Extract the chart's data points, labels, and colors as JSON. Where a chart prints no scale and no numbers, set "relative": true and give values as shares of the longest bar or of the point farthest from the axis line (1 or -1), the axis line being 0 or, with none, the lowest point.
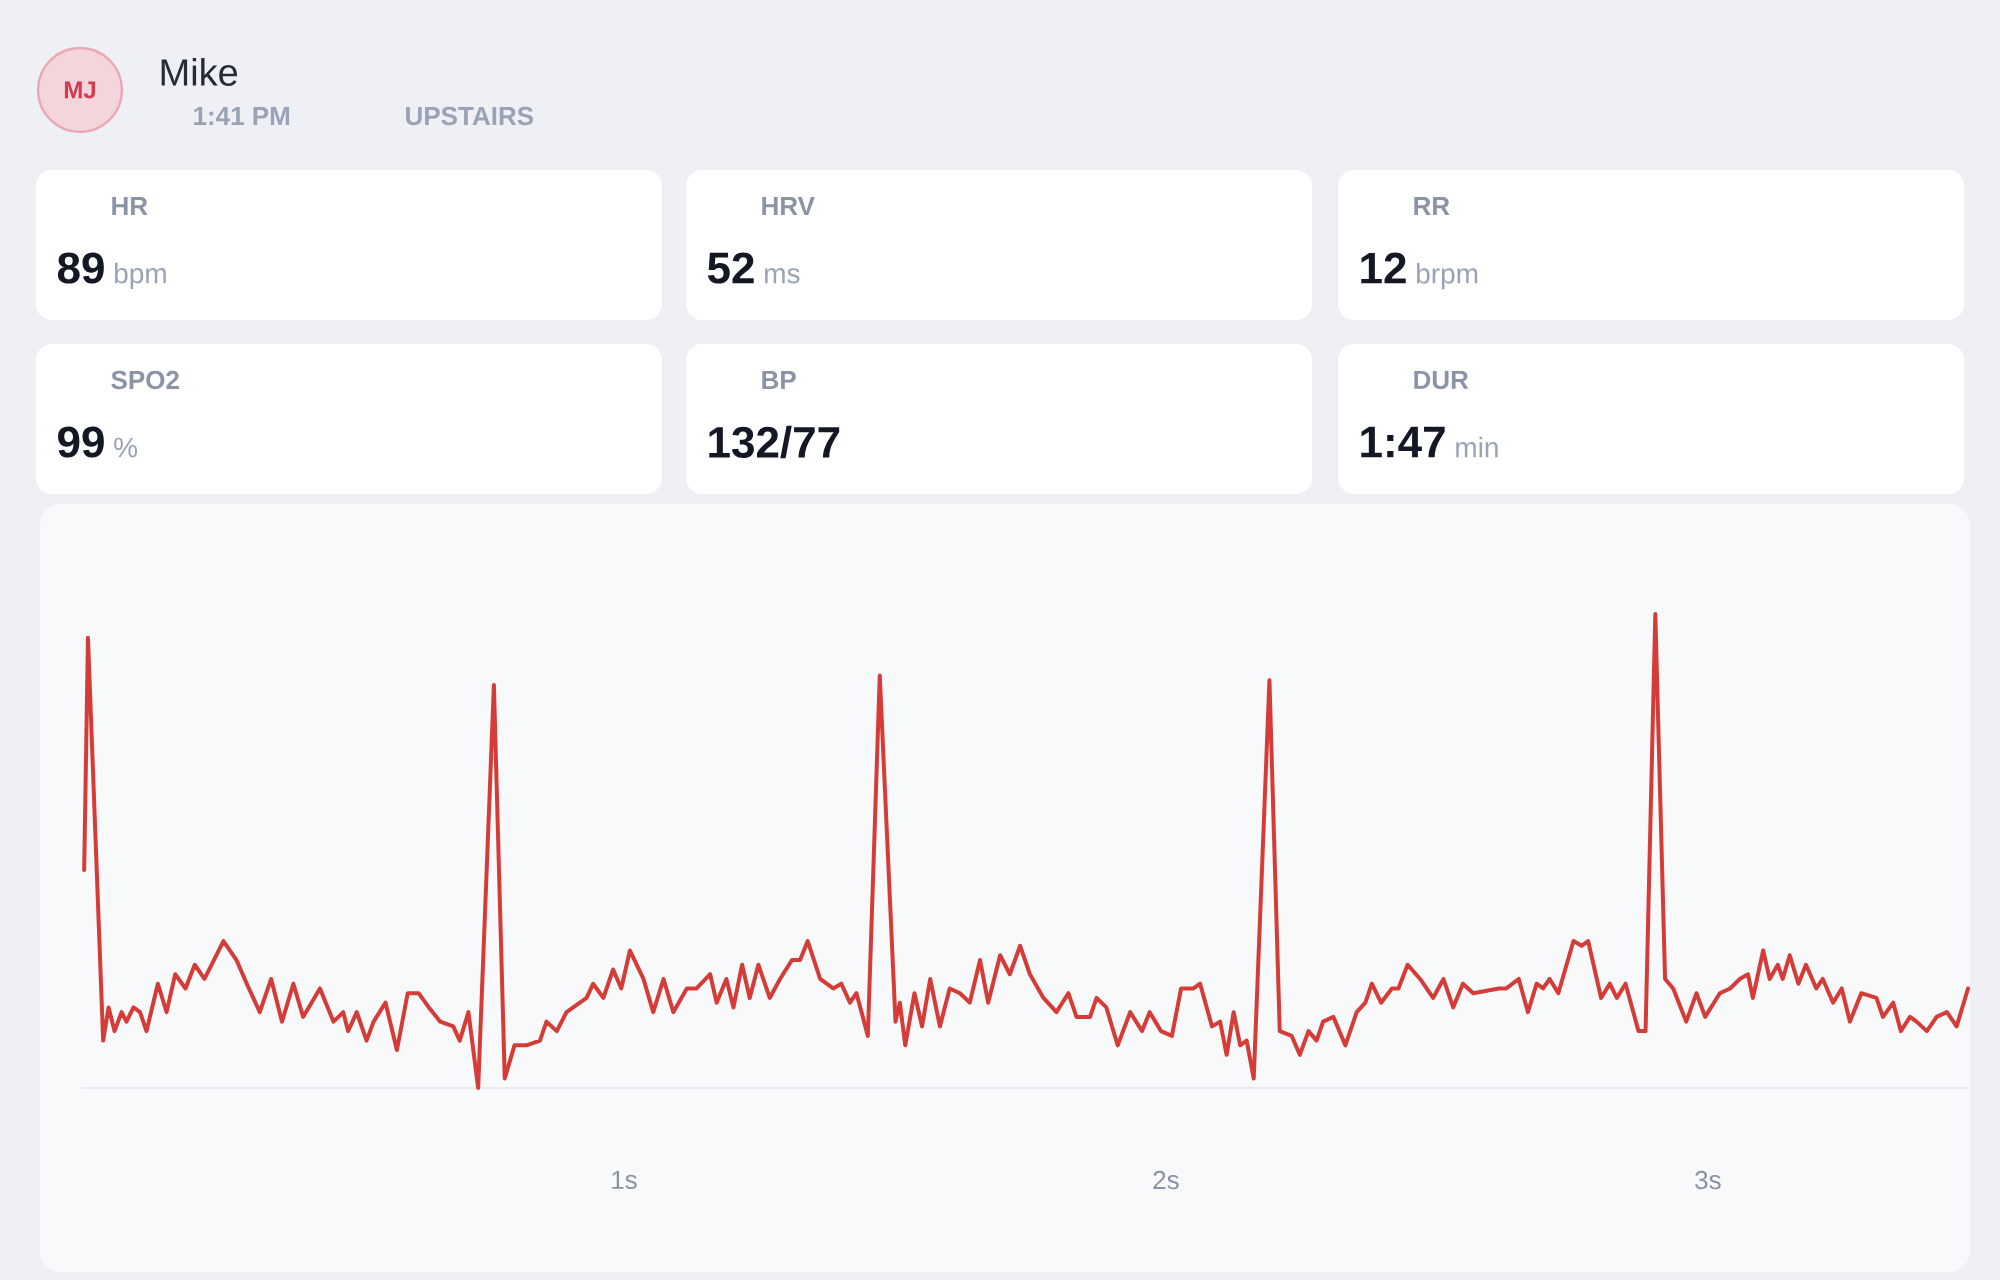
{
  "chart_data": [
    {
      "type": "other",
      "title": "Mike",
      "annotations": [
        "MJ",
        "1:41 PM",
        "UPSTAIRS"
      ]
    },
    {
      "type": "other",
      "title": "HR",
      "annotations": [
        "89",
        "bpm"
      ]
    },
    {
      "type": "other",
      "title": "HRV",
      "annotations": [
        "52",
        "ms"
      ]
    },
    {
      "type": "other",
      "title": "RR",
      "annotations": [
        "12",
        "brpm"
      ]
    },
    {
      "type": "other",
      "title": "SPO2",
      "annotations": [
        "99",
        "%"
      ]
    },
    {
      "type": "other",
      "title": "BP",
      "annotations": [
        "132/77"
      ]
    },
    {
      "type": "other",
      "title": "DUR",
      "annotations": [
        "1:47",
        "min"
      ]
    },
    {
      "type": "line",
      "relative": true,
      "color": "#d63c37",
      "xlim": [
        0,
        3.48
      ],
      "xticks": [
        {
          "value": 1,
          "label": "1s"
        },
        {
          "value": 2,
          "label": "2s"
        },
        {
          "value": 3,
          "label": "3s"
        }
      ],
      "x": [
        0.004,
        0.011,
        0.039,
        0.049,
        0.06,
        0.073,
        0.082,
        0.095,
        0.107,
        0.119,
        0.14,
        0.156,
        0.172,
        0.191,
        0.208,
        0.226,
        0.261,
        0.285,
        0.304,
        0.328,
        0.349,
        0.369,
        0.39,
        0.408,
        0.439,
        0.464,
        0.482,
        0.491,
        0.507,
        0.525,
        0.538,
        0.56,
        0.581,
        0.601,
        0.621,
        0.64,
        0.661,
        0.685,
        0.697,
        0.713,
        0.731,
        0.76,
        0.78,
        0.798,
        0.82,
        0.845,
        0.857,
        0.876,
        0.894,
        0.931,
        0.943,
        0.962,
        0.98,
        0.995,
        1.011,
        1.036,
        1.054,
        1.073,
        1.091,
        1.116,
        1.134,
        1.159,
        1.171,
        1.189,
        1.202,
        1.218,
        1.232,
        1.248,
        1.269,
        1.288,
        1.31,
        1.325,
        1.339,
        1.362,
        1.386,
        1.401,
        1.417,
        1.429,
        1.45,
        1.472,
        1.501,
        1.509,
        1.519,
        1.536,
        1.55,
        1.565,
        1.583,
        1.601,
        1.62,
        1.638,
        1.657,
        1.672,
        1.694,
        1.712,
        1.731,
        1.749,
        1.774,
        1.798,
        1.82,
        1.835,
        1.86,
        1.872,
        1.89,
        1.911,
        1.934,
        1.956,
        1.97,
        1.991,
        2.011,
        2.028,
        2.051,
        2.063,
        2.085,
        2.1,
        2.112,
        2.125,
        2.137,
        2.149,
        2.162,
        2.191,
        2.21,
        2.232,
        2.247,
        2.263,
        2.278,
        2.29,
        2.309,
        2.331,
        2.352,
        2.368,
        2.38,
        2.397,
        2.417,
        2.429,
        2.446,
        2.469,
        2.493,
        2.512,
        2.53,
        2.548,
        2.567,
        2.614,
        2.628,
        2.651,
        2.668,
        2.684,
        2.696,
        2.708,
        2.724,
        2.752,
        2.767,
        2.779,
        2.803,
        2.819,
        2.832,
        2.848,
        2.872,
        2.885,
        2.903,
        2.921,
        2.936,
        2.96,
        2.979,
        2.995,
        3.022,
        3.041,
        3.059,
        3.074,
        3.083,
        3.102,
        3.114,
        3.129,
        3.138,
        3.151,
        3.167,
        3.181,
        3.2,
        3.212,
        3.231,
        3.247,
        3.262,
        3.283,
        3.311,
        3.323,
        3.342,
        3.356,
        3.373,
        3.385,
        3.404,
        3.422,
        3.441,
        3.459,
        3.48
      ],
      "values": [
        0.46,
        0.95,
        0.1,
        0.17,
        0.12,
        0.16,
        0.14,
        0.17,
        0.16,
        0.12,
        0.22,
        0.16,
        0.24,
        0.21,
        0.26,
        0.23,
        0.31,
        0.27,
        0.22,
        0.16,
        0.23,
        0.14,
        0.22,
        0.15,
        0.21,
        0.14,
        0.16,
        0.12,
        0.16,
        0.1,
        0.14,
        0.18,
        0.08,
        0.2,
        0.2,
        0.17,
        0.14,
        0.13,
        0.1,
        0.16,
        0.0,
        0.85,
        0.02,
        0.09,
        0.09,
        0.1,
        0.14,
        0.12,
        0.16,
        0.19,
        0.22,
        0.19,
        0.25,
        0.21,
        0.29,
        0.23,
        0.16,
        0.23,
        0.16,
        0.21,
        0.21,
        0.24,
        0.18,
        0.23,
        0.17,
        0.26,
        0.19,
        0.26,
        0.19,
        0.23,
        0.27,
        0.27,
        0.31,
        0.23,
        0.21,
        0.22,
        0.18,
        0.2,
        0.11,
        0.87,
        0.14,
        0.18,
        0.09,
        0.2,
        0.13,
        0.23,
        0.13,
        0.21,
        0.2,
        0.18,
        0.27,
        0.18,
        0.28,
        0.24,
        0.3,
        0.24,
        0.19,
        0.16,
        0.2,
        0.15,
        0.15,
        0.19,
        0.17,
        0.09,
        0.16,
        0.12,
        0.16,
        0.12,
        0.11,
        0.21,
        0.21,
        0.22,
        0.13,
        0.14,
        0.07,
        0.16,
        0.09,
        0.1,
        0.02,
        0.86,
        0.12,
        0.11,
        0.07,
        0.12,
        0.1,
        0.14,
        0.15,
        0.09,
        0.16,
        0.18,
        0.22,
        0.18,
        0.21,
        0.21,
        0.26,
        0.23,
        0.19,
        0.23,
        0.17,
        0.22,
        0.2,
        0.21,
        0.21,
        0.23,
        0.16,
        0.22,
        0.21,
        0.23,
        0.2,
        0.31,
        0.3,
        0.31,
        0.19,
        0.22,
        0.19,
        0.22,
        0.12,
        0.12,
        1.0,
        0.23,
        0.21,
        0.14,
        0.2,
        0.15,
        0.2,
        0.21,
        0.23,
        0.24,
        0.19,
        0.29,
        0.23,
        0.26,
        0.23,
        0.28,
        0.22,
        0.26,
        0.21,
        0.23,
        0.18,
        0.21,
        0.14,
        0.2,
        0.19,
        0.15,
        0.18,
        0.12,
        0.15,
        0.14,
        0.12,
        0.15,
        0.16,
        0.13,
        0.21
      ]
    }
  ]
}
